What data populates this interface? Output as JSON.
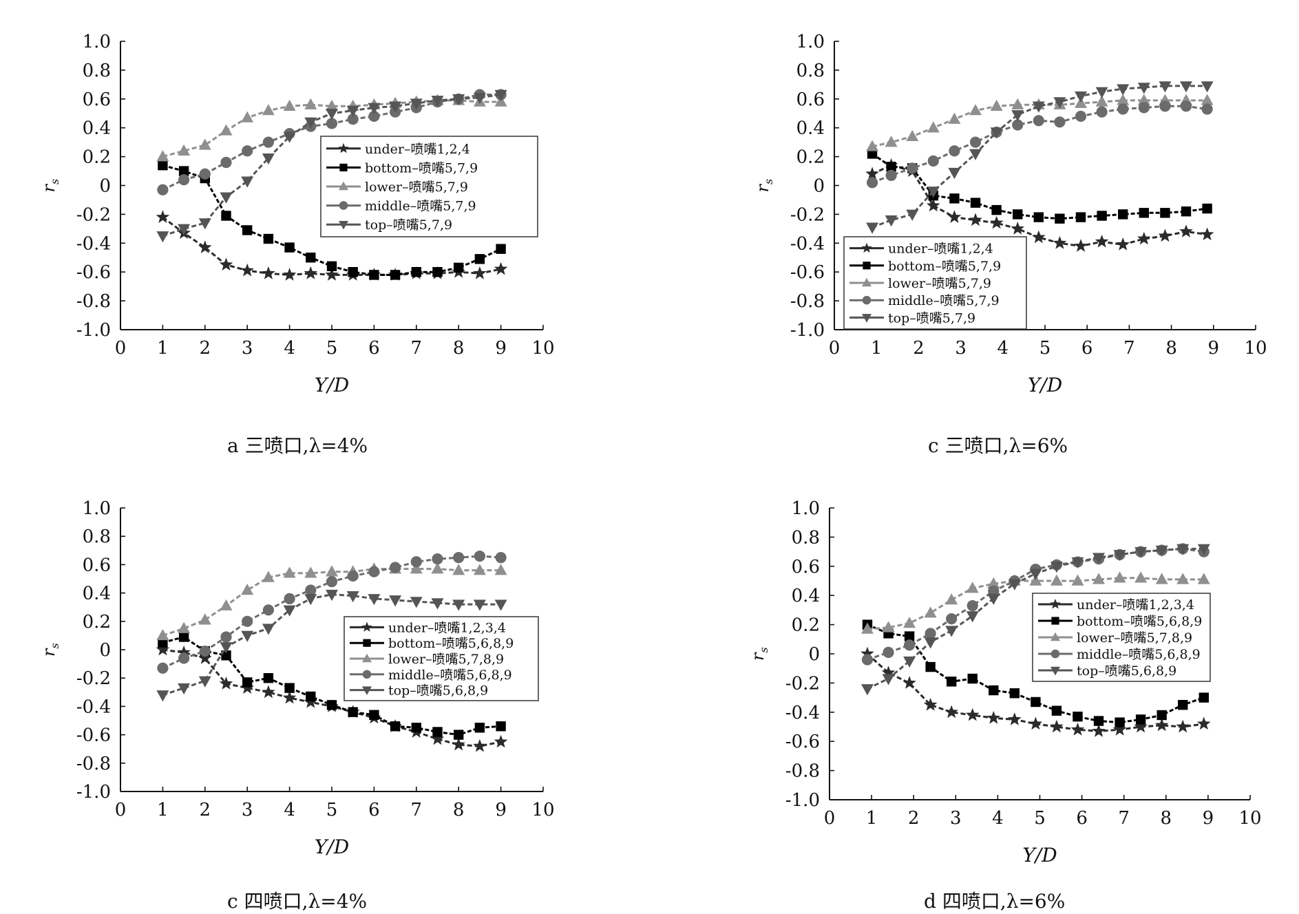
{
  "colors": {
    "under": "#2b2b2b",
    "bottom": "#000000",
    "lower": "#8f8f8f",
    "middle": "#6b6b6b",
    "top": "#555555"
  },
  "chart_data": [
    {
      "type": "line",
      "ylabel": "r_s",
      "xlabel": "Y/D",
      "caption": "a 三喷口,λ=4%",
      "xlim": [
        0,
        10
      ],
      "ylim": [
        -1.0,
        1.0
      ],
      "xticks": [
        "0",
        "1",
        "2",
        "3",
        "4",
        "5",
        "6",
        "7",
        "8",
        "9",
        "10"
      ],
      "yticks": [
        "1.0",
        "0.8",
        "0.6",
        "0.4",
        "0.2",
        "0",
        "-0.2",
        "-0.4",
        "-0.6",
        "-0.8",
        "-1.0"
      ],
      "legend_position": "center-right",
      "series": [
        {
          "name": "under–喷嘴1,2,4",
          "marker": "star",
          "style": "under",
          "x": [
            1,
            1.5,
            2,
            2.5,
            3,
            3.5,
            4,
            4.5,
            5,
            5.5,
            6,
            6.5,
            7,
            7.5,
            8,
            8.5,
            9
          ],
          "y": [
            -0.22,
            -0.33,
            -0.43,
            -0.55,
            -0.59,
            -0.61,
            -0.62,
            -0.61,
            -0.62,
            -0.62,
            -0.62,
            -0.62,
            -0.61,
            -0.61,
            -0.6,
            -0.61,
            -0.58
          ]
        },
        {
          "name": "bottom–喷嘴5,7,9",
          "marker": "square",
          "style": "bottom",
          "x": [
            1,
            1.5,
            2,
            2.5,
            3,
            3.5,
            4,
            4.5,
            5,
            5.5,
            6,
            6.5,
            7,
            7.5,
            8,
            8.5,
            9
          ],
          "y": [
            0.14,
            0.1,
            0.05,
            -0.21,
            -0.31,
            -0.37,
            -0.43,
            -0.5,
            -0.56,
            -0.6,
            -0.62,
            -0.62,
            -0.6,
            -0.6,
            -0.57,
            -0.51,
            -0.44
          ]
        },
        {
          "name": "lower–喷嘴5,7,9",
          "marker": "triangle-up",
          "style": "lower",
          "x": [
            1,
            1.5,
            2,
            2.5,
            3,
            3.5,
            4,
            4.5,
            5,
            5.5,
            6,
            6.5,
            7,
            7.5,
            8,
            8.5,
            9
          ],
          "y": [
            0.2,
            0.24,
            0.28,
            0.38,
            0.47,
            0.52,
            0.55,
            0.56,
            0.55,
            0.55,
            0.56,
            0.57,
            0.58,
            0.59,
            0.59,
            0.58,
            0.58
          ]
        },
        {
          "name": "middle–喷嘴5,7,9",
          "marker": "circle",
          "style": "middle",
          "x": [
            1,
            1.5,
            2,
            2.5,
            3,
            3.5,
            4,
            4.5,
            5,
            5.5,
            6,
            6.5,
            7,
            7.5,
            8,
            8.5,
            9
          ],
          "y": [
            -0.03,
            0.04,
            0.08,
            0.16,
            0.24,
            0.3,
            0.36,
            0.41,
            0.43,
            0.46,
            0.48,
            0.51,
            0.54,
            0.58,
            0.6,
            0.63,
            0.63
          ]
        },
        {
          "name": "top–喷嘴5,7,9",
          "marker": "triangle-down",
          "style": "top",
          "x": [
            1,
            1.5,
            2,
            2.5,
            3,
            3.5,
            4,
            4.5,
            5,
            5.5,
            6,
            6.5,
            7,
            7.5,
            8,
            8.5,
            9
          ],
          "y": [
            -0.35,
            -0.3,
            -0.26,
            -0.08,
            0.03,
            0.19,
            0.34,
            0.44,
            0.5,
            0.52,
            0.54,
            0.55,
            0.57,
            0.59,
            0.6,
            0.61,
            0.63
          ]
        }
      ]
    },
    {
      "type": "line",
      "ylabel": "r_s",
      "xlabel": "Y/D",
      "caption": "c 三喷口,λ=6%",
      "xlim": [
        0,
        10
      ],
      "ylim": [
        -1.0,
        1.0
      ],
      "xticks": [
        "0",
        "1",
        "2",
        "3",
        "4",
        "5",
        "6",
        "7",
        "8",
        "9",
        "10"
      ],
      "yticks": [
        "1.0",
        "0.8",
        "0.6",
        "0.4",
        "0.2",
        "0",
        "-0.2",
        "-0.4",
        "-0.6",
        "-0.8",
        "-1.0"
      ],
      "legend_position": "bottom-left",
      "series": [
        {
          "name": "under–喷嘴1,2,4",
          "marker": "star",
          "style": "under",
          "x": [
            0.9,
            1.35,
            1.85,
            2.35,
            2.85,
            3.35,
            3.85,
            4.35,
            4.85,
            5.35,
            5.85,
            6.35,
            6.85,
            7.35,
            7.85,
            8.35,
            8.85
          ],
          "y": [
            0.08,
            0.14,
            0.1,
            -0.14,
            -0.22,
            -0.24,
            -0.26,
            -0.3,
            -0.36,
            -0.4,
            -0.42,
            -0.39,
            -0.41,
            -0.37,
            -0.35,
            -0.32,
            -0.34
          ]
        },
        {
          "name": "bottom–喷嘴5,7,9",
          "marker": "square",
          "style": "bottom",
          "x": [
            0.9,
            1.35,
            1.85,
            2.35,
            2.85,
            3.35,
            3.85,
            4.35,
            4.85,
            5.35,
            5.85,
            6.35,
            6.85,
            7.35,
            7.85,
            8.35,
            8.85
          ],
          "y": [
            0.22,
            0.13,
            0.12,
            -0.07,
            -0.09,
            -0.12,
            -0.17,
            -0.2,
            -0.22,
            -0.23,
            -0.22,
            -0.21,
            -0.2,
            -0.19,
            -0.19,
            -0.18,
            -0.16
          ]
        },
        {
          "name": "lower–喷嘴5,7,9",
          "marker": "triangle-up",
          "style": "lower",
          "x": [
            0.9,
            1.35,
            1.85,
            2.35,
            2.85,
            3.35,
            3.85,
            4.35,
            4.85,
            5.35,
            5.85,
            6.35,
            6.85,
            7.35,
            7.85,
            8.35,
            8.85
          ],
          "y": [
            0.27,
            0.3,
            0.34,
            0.4,
            0.46,
            0.52,
            0.55,
            0.56,
            0.56,
            0.56,
            0.57,
            0.58,
            0.59,
            0.59,
            0.59,
            0.59,
            0.59
          ]
        },
        {
          "name": "middle–喷嘴5,7,9",
          "marker": "circle",
          "style": "middle",
          "x": [
            0.9,
            1.35,
            1.85,
            2.35,
            2.85,
            3.35,
            3.85,
            4.35,
            4.85,
            5.35,
            5.85,
            6.35,
            6.85,
            7.35,
            7.85,
            8.35,
            8.85
          ],
          "y": [
            0.02,
            0.07,
            0.12,
            0.17,
            0.24,
            0.3,
            0.37,
            0.42,
            0.45,
            0.44,
            0.48,
            0.51,
            0.53,
            0.54,
            0.55,
            0.55,
            0.53
          ]
        },
        {
          "name": "top–喷嘴5,7,9",
          "marker": "triangle-down",
          "style": "top",
          "x": [
            0.9,
            1.35,
            1.85,
            2.35,
            2.85,
            3.35,
            3.85,
            4.35,
            4.85,
            5.35,
            5.85,
            6.35,
            6.85,
            7.35,
            7.85,
            8.35,
            8.85
          ],
          "y": [
            -0.29,
            -0.24,
            -0.2,
            -0.04,
            0.09,
            0.22,
            0.37,
            0.49,
            0.55,
            0.58,
            0.62,
            0.65,
            0.67,
            0.68,
            0.69,
            0.69,
            0.69
          ]
        }
      ]
    },
    {
      "type": "line",
      "ylabel": "r_s",
      "xlabel": "Y/D",
      "caption": "c 四喷口,λ=4%",
      "xlim": [
        0,
        10
      ],
      "ylim": [
        -1.0,
        1.0
      ],
      "xticks": [
        "0",
        "1",
        "2",
        "3",
        "4",
        "5",
        "6",
        "7",
        "8",
        "9",
        "10"
      ],
      "yticks": [
        "1.0",
        "0.8",
        "0.6",
        "0.4",
        "0.2",
        "0",
        "-0.2",
        "-0.4",
        "-0.6",
        "-0.8",
        "-1.0"
      ],
      "legend_position": "center-right",
      "series": [
        {
          "name": "under–喷嘴1,2,3,4",
          "marker": "star",
          "style": "under",
          "x": [
            1,
            1.5,
            2,
            2.5,
            3,
            3.5,
            4,
            4.5,
            5,
            5.5,
            6,
            6.5,
            7,
            7.5,
            8,
            8.5,
            9
          ],
          "y": [
            0.0,
            -0.02,
            -0.06,
            -0.24,
            -0.27,
            -0.3,
            -0.34,
            -0.37,
            -0.4,
            -0.44,
            -0.48,
            -0.54,
            -0.58,
            -0.63,
            -0.67,
            -0.68,
            -0.65
          ]
        },
        {
          "name": "bottom–喷嘴5,6,8,9",
          "marker": "square",
          "style": "bottom",
          "x": [
            1,
            1.5,
            2,
            2.5,
            3,
            3.5,
            4,
            4.5,
            5,
            5.5,
            6,
            6.5,
            7,
            7.5,
            8,
            8.5,
            9
          ],
          "y": [
            0.05,
            0.09,
            -0.01,
            -0.04,
            -0.23,
            -0.2,
            -0.27,
            -0.33,
            -0.39,
            -0.44,
            -0.46,
            -0.54,
            -0.55,
            -0.58,
            -0.6,
            -0.55,
            -0.54
          ]
        },
        {
          "name": "lower–喷嘴5,7,8,9",
          "marker": "triangle-up",
          "style": "lower",
          "x": [
            1,
            1.5,
            2,
            2.5,
            3,
            3.5,
            4,
            4.5,
            5,
            5.5,
            6,
            6.5,
            7,
            7.5,
            8,
            8.5,
            9
          ],
          "y": [
            0.1,
            0.15,
            0.21,
            0.31,
            0.42,
            0.51,
            0.54,
            0.54,
            0.55,
            0.55,
            0.57,
            0.57,
            0.57,
            0.57,
            0.56,
            0.56,
            0.56
          ]
        },
        {
          "name": "middle–喷嘴5,6,8,9",
          "marker": "circle",
          "style": "middle",
          "x": [
            1,
            1.5,
            2,
            2.5,
            3,
            3.5,
            4,
            4.5,
            5,
            5.5,
            6,
            6.5,
            7,
            7.5,
            8,
            8.5,
            9
          ],
          "y": [
            -0.13,
            -0.06,
            -0.01,
            0.09,
            0.2,
            0.28,
            0.36,
            0.42,
            0.48,
            0.52,
            0.55,
            0.58,
            0.62,
            0.64,
            0.65,
            0.66,
            0.65
          ]
        },
        {
          "name": "top–喷嘴5,6,8,9",
          "marker": "triangle-down",
          "style": "top",
          "x": [
            1,
            1.5,
            2,
            2.5,
            3,
            3.5,
            4,
            4.5,
            5,
            5.5,
            6,
            6.5,
            7,
            7.5,
            8,
            8.5,
            9
          ],
          "y": [
            -0.32,
            -0.27,
            -0.22,
            0.02,
            0.1,
            0.15,
            0.28,
            0.36,
            0.39,
            0.38,
            0.36,
            0.35,
            0.34,
            0.33,
            0.32,
            0.32,
            0.32
          ]
        }
      ]
    },
    {
      "type": "line",
      "ylabel": "r_s",
      "xlabel": "Y/D",
      "caption": "d 四喷口,λ=6%",
      "xlim": [
        0,
        10
      ],
      "ylim": [
        -1.0,
        1.0
      ],
      "xticks": [
        "0",
        "1",
        "2",
        "3",
        "4",
        "5",
        "6",
        "7",
        "8",
        "9",
        "10"
      ],
      "yticks": [
        "1.0",
        "0.8",
        "0.6",
        "0.4",
        "0.2",
        "0",
        "-0.2",
        "-0.4",
        "-0.6",
        "-0.8",
        "-1.0"
      ],
      "legend_position": "center-right",
      "series": [
        {
          "name": "under–喷嘴1,2,3,4",
          "marker": "star",
          "style": "under",
          "x": [
            0.9,
            1.4,
            1.9,
            2.4,
            2.9,
            3.4,
            3.9,
            4.4,
            4.9,
            5.4,
            5.9,
            6.4,
            6.9,
            7.4,
            7.9,
            8.4,
            8.9
          ],
          "y": [
            0.0,
            -0.13,
            -0.2,
            -0.35,
            -0.4,
            -0.42,
            -0.44,
            -0.45,
            -0.48,
            -0.5,
            -0.52,
            -0.53,
            -0.52,
            -0.5,
            -0.49,
            -0.5,
            -0.48
          ]
        },
        {
          "name": "bottom–喷嘴5,6,8,9",
          "marker": "square",
          "style": "bottom",
          "x": [
            0.9,
            1.4,
            1.9,
            2.4,
            2.9,
            3.4,
            3.9,
            4.4,
            4.9,
            5.4,
            5.9,
            6.4,
            6.9,
            7.4,
            7.9,
            8.4,
            8.9
          ],
          "y": [
            0.2,
            0.14,
            0.12,
            -0.09,
            -0.19,
            -0.17,
            -0.25,
            -0.27,
            -0.33,
            -0.39,
            -0.43,
            -0.46,
            -0.47,
            -0.45,
            -0.42,
            -0.35,
            -0.3
          ]
        },
        {
          "name": "lower–喷嘴5,7,8,9",
          "marker": "triangle-up",
          "style": "lower",
          "x": [
            0.9,
            1.4,
            1.9,
            2.4,
            2.9,
            3.4,
            3.9,
            4.4,
            4.9,
            5.4,
            5.9,
            6.4,
            6.9,
            7.4,
            7.9,
            8.4,
            8.9
          ],
          "y": [
            0.17,
            0.18,
            0.21,
            0.28,
            0.37,
            0.45,
            0.48,
            0.5,
            0.5,
            0.5,
            0.5,
            0.51,
            0.52,
            0.52,
            0.51,
            0.51,
            0.51
          ]
        },
        {
          "name": "middle–喷嘴5,6,8,9",
          "marker": "circle",
          "style": "middle",
          "x": [
            0.9,
            1.4,
            1.9,
            2.4,
            2.9,
            3.4,
            3.9,
            4.4,
            4.9,
            5.4,
            5.9,
            6.4,
            6.9,
            7.4,
            7.9,
            8.4,
            8.9
          ],
          "y": [
            -0.04,
            0.01,
            0.06,
            0.14,
            0.24,
            0.33,
            0.43,
            0.5,
            0.58,
            0.61,
            0.63,
            0.65,
            0.68,
            0.7,
            0.71,
            0.72,
            0.7
          ]
        },
        {
          "name": "top–喷嘴5,6,8,9",
          "marker": "triangle-down",
          "style": "top",
          "x": [
            0.9,
            1.4,
            1.9,
            2.4,
            2.9,
            3.4,
            3.9,
            4.4,
            4.9,
            5.4,
            5.9,
            6.4,
            6.9,
            7.4,
            7.9,
            8.4,
            8.9
          ],
          "y": [
            -0.24,
            -0.17,
            -0.05,
            0.08,
            0.16,
            0.26,
            0.38,
            0.48,
            0.55,
            0.6,
            0.63,
            0.66,
            0.68,
            0.7,
            0.71,
            0.72,
            0.72
          ]
        }
      ]
    }
  ]
}
